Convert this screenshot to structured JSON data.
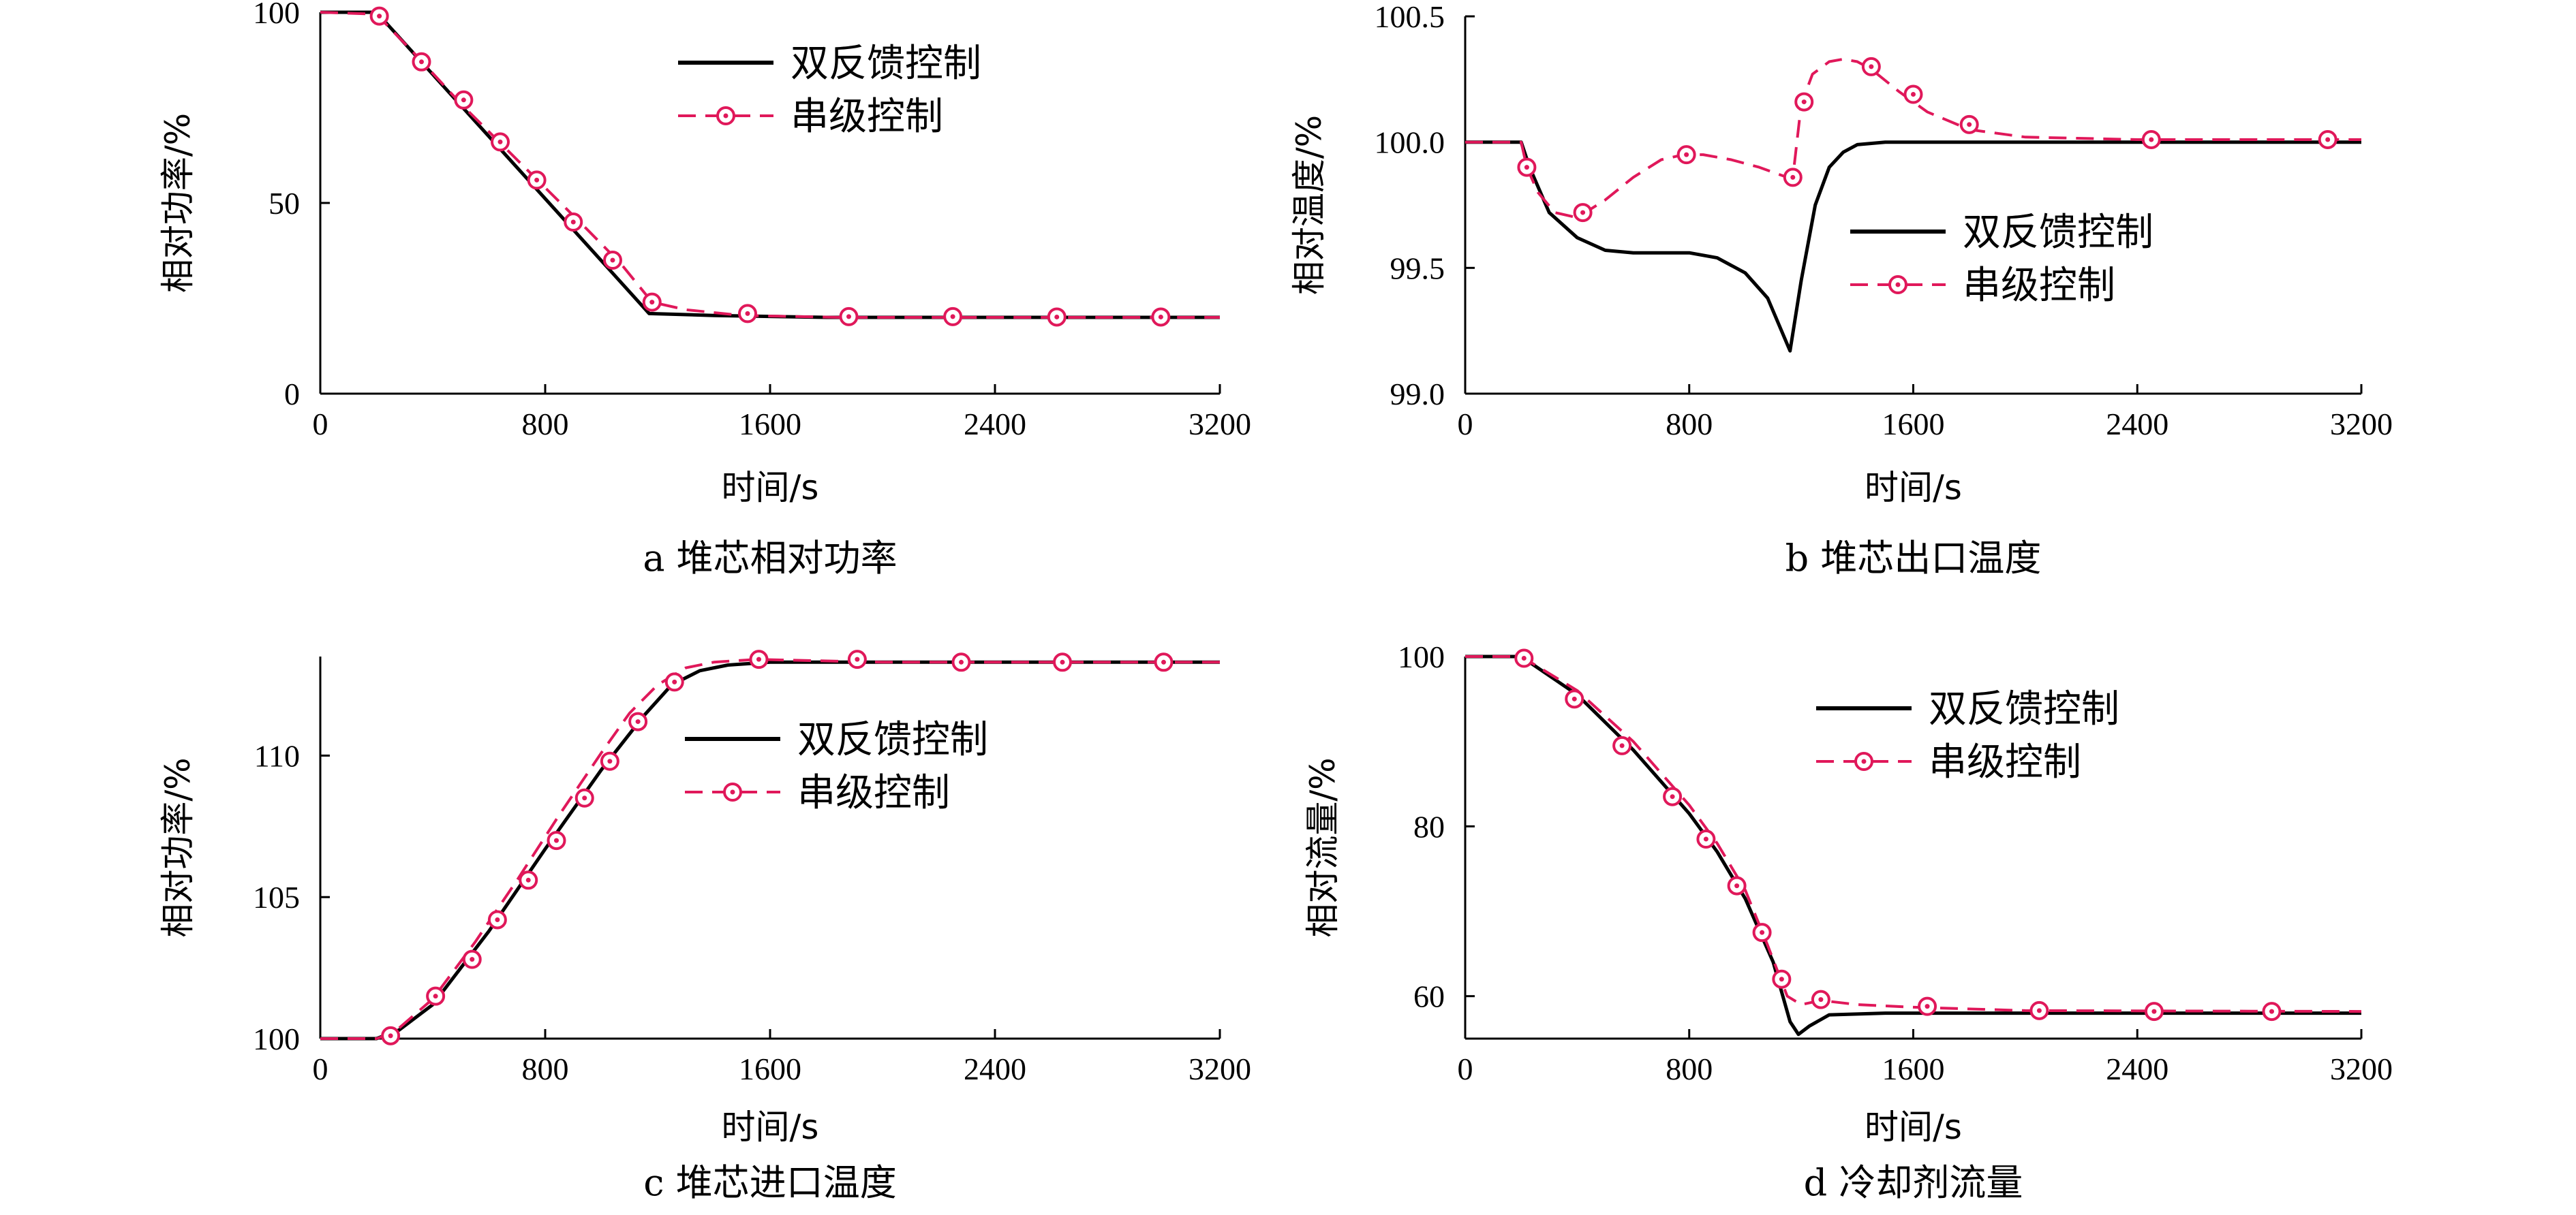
{
  "colors": {
    "feedback": "#000000",
    "cascade": "#e0185a"
  },
  "chart_data": [
    {
      "type": "line",
      "caption": "a  堆芯相对功率",
      "xlabel": "时间/s",
      "ylabel": "相对功率/%",
      "xlim": [
        0,
        3200
      ],
      "ylim": [
        0,
        100
      ],
      "xticks": [
        0,
        800,
        1600,
        2400,
        3200
      ],
      "yticks": [
        0,
        50,
        100
      ],
      "yticklabels": [
        "0",
        "50",
        "100"
      ],
      "legend": [
        "双反馈控制",
        "串级控制"
      ],
      "legend_position": "top-right",
      "series": [
        {
          "name": "双反馈控制",
          "x": [
            0,
            200,
            1170,
            1400,
            1800,
            3200
          ],
          "y": [
            100,
            100,
            21,
            20.5,
            20,
            20
          ]
        },
        {
          "name": "串级控制",
          "x": [
            0,
            200,
            350,
            500,
            650,
            800,
            950,
            1070,
            1180,
            1300,
            1500,
            1850,
            2250,
            2600,
            3000,
            3200
          ],
          "y": [
            100,
            99.5,
            88,
            76,
            65,
            54,
            43,
            34,
            24,
            22,
            20.5,
            20,
            20,
            20,
            20,
            20
          ]
        }
      ],
      "markers": {
        "x": [
          210,
          360,
          510,
          640,
          770,
          900,
          1040,
          1180,
          1520,
          1880,
          2250,
          2620,
          2990
        ],
        "y": [
          99,
          87,
          77,
          66,
          56,
          45,
          35,
          24,
          21,
          20.2,
          20.2,
          20.1,
          20.1
        ]
      }
    },
    {
      "type": "line",
      "caption": "b  堆芯出口温度",
      "xlabel": "时间/s",
      "ylabel": "相对温度/%",
      "xlim": [
        0,
        3200
      ],
      "ylim": [
        99.0,
        100.5
      ],
      "xticks": [
        0,
        800,
        1600,
        2400,
        3200
      ],
      "yticks": [
        99.0,
        99.5,
        100.0,
        100.5
      ],
      "yticklabels": [
        "99.0",
        "99.5",
        "100.0",
        "100.5"
      ],
      "legend": [
        "双反馈控制",
        "串级控制"
      ],
      "legend_position": "middle-right",
      "series": [
        {
          "name": "双反馈控制",
          "x": [
            0,
            200,
            230,
            300,
            400,
            500,
            600,
            700,
            800,
            900,
            1000,
            1080,
            1160,
            1200,
            1250,
            1300,
            1350,
            1400,
            1500,
            1600,
            2000,
            3200
          ],
          "y": [
            100.0,
            100.0,
            99.9,
            99.72,
            99.62,
            99.57,
            99.56,
            99.56,
            99.56,
            99.54,
            99.48,
            99.38,
            99.17,
            99.45,
            99.75,
            99.9,
            99.96,
            99.99,
            100.0,
            100.0,
            100.0,
            100.0
          ]
        },
        {
          "name": "串级控制",
          "x": [
            0,
            200,
            220,
            260,
            320,
            400,
            500,
            600,
            700,
            780,
            850,
            950,
            1050,
            1150,
            1170,
            1200,
            1240,
            1300,
            1350,
            1400,
            1450,
            1550,
            1650,
            1800,
            2000,
            2400,
            3200
          ],
          "y": [
            100.0,
            100.0,
            99.9,
            99.8,
            99.72,
            99.7,
            99.77,
            99.86,
            99.93,
            99.95,
            99.95,
            99.93,
            99.9,
            99.86,
            99.86,
            100.15,
            100.27,
            100.32,
            100.33,
            100.32,
            100.29,
            100.2,
            100.12,
            100.05,
            100.02,
            100.01,
            100.01
          ]
        }
      ],
      "markers": {
        "x": [
          220,
          420,
          790,
          1170,
          1210,
          1450,
          1600,
          1800,
          2450,
          3080
        ],
        "y": [
          99.9,
          99.72,
          99.95,
          99.86,
          100.16,
          100.3,
          100.19,
          100.07,
          100.01,
          100.01
        ]
      }
    },
    {
      "type": "line",
      "caption": "c  堆芯进口温度",
      "xlabel": "时间/s",
      "ylabel": "相对功率/%",
      "xlim": [
        0,
        3200
      ],
      "ylim": [
        100,
        113.5
      ],
      "xticks": [
        0,
        800,
        1600,
        2400,
        3200
      ],
      "yticks": [
        100,
        105,
        110
      ],
      "yticklabels": [
        "100",
        "105",
        "110"
      ],
      "legend": [
        "双反馈控制",
        "串级控制"
      ],
      "legend_position": "middle-right",
      "series": [
        {
          "name": "双反馈控制",
          "x": [
            0,
            200,
            280,
            400,
            600,
            800,
            1000,
            1150,
            1250,
            1350,
            1450,
            1600,
            2000,
            3200
          ],
          "y": [
            100,
            100,
            100.3,
            101.2,
            103.8,
            106.7,
            109.5,
            111.4,
            112.5,
            113.0,
            113.2,
            113.3,
            113.3,
            113.3
          ]
        },
        {
          "name": "串级控制",
          "x": [
            0,
            200,
            260,
            400,
            550,
            700,
            850,
            1000,
            1100,
            1200,
            1300,
            1400,
            1550,
            2000,
            3200
          ],
          "y": [
            100,
            100,
            100.2,
            101.4,
            103.4,
            105.6,
            107.9,
            110.1,
            111.5,
            112.5,
            113.1,
            113.3,
            113.4,
            113.3,
            113.3
          ]
        }
      ],
      "markers": {
        "x": [
          250,
          410,
          540,
          630,
          740,
          840,
          940,
          1030,
          1130,
          1260,
          1560,
          1910,
          2280,
          2640,
          3000
        ],
        "y": [
          100.1,
          101.5,
          102.8,
          104.2,
          105.6,
          107.0,
          108.5,
          109.8,
          111.2,
          112.6,
          113.4,
          113.4,
          113.3,
          113.3,
          113.3
        ]
      }
    },
    {
      "type": "line",
      "caption": "d  冷却剂流量",
      "xlabel": "时间/s",
      "ylabel": "相对流量/%",
      "xlim": [
        0,
        3200
      ],
      "ylim": [
        55,
        100
      ],
      "xticks": [
        0,
        800,
        1600,
        2400,
        3200
      ],
      "yticks": [
        60,
        80,
        100
      ],
      "yticklabels": [
        "60",
        "80",
        "100"
      ],
      "legend": [
        "双反馈控制",
        "串级控制"
      ],
      "legend_position": "top-right",
      "series": [
        {
          "name": "双反馈控制",
          "x": [
            0,
            200,
            400,
            600,
            800,
            900,
            1000,
            1100,
            1160,
            1190,
            1230,
            1300,
            1500,
            2000,
            3200
          ],
          "y": [
            100,
            100,
            95.5,
            89,
            81.5,
            77,
            71.5,
            64,
            57,
            55.5,
            56.5,
            57.8,
            58,
            58,
            58
          ]
        },
        {
          "name": "串级控制",
          "x": [
            0,
            200,
            400,
            600,
            800,
            900,
            1000,
            1080,
            1150,
            1200,
            1270,
            1400,
            1600,
            2000,
            3200
          ],
          "y": [
            100,
            100,
            96,
            90,
            82.5,
            78,
            72.5,
            66,
            60,
            59,
            59.5,
            59,
            58.7,
            58.3,
            58.2
          ]
        }
      ],
      "markers": {
        "x": [
          210,
          390,
          560,
          740,
          860,
          970,
          1060,
          1130,
          1270,
          1650,
          2050,
          2460,
          2880
        ],
        "y": [
          99.8,
          95,
          89.5,
          83.5,
          78.5,
          73,
          67.5,
          62,
          59.6,
          58.8,
          58.3,
          58.2,
          58.2
        ]
      }
    }
  ]
}
